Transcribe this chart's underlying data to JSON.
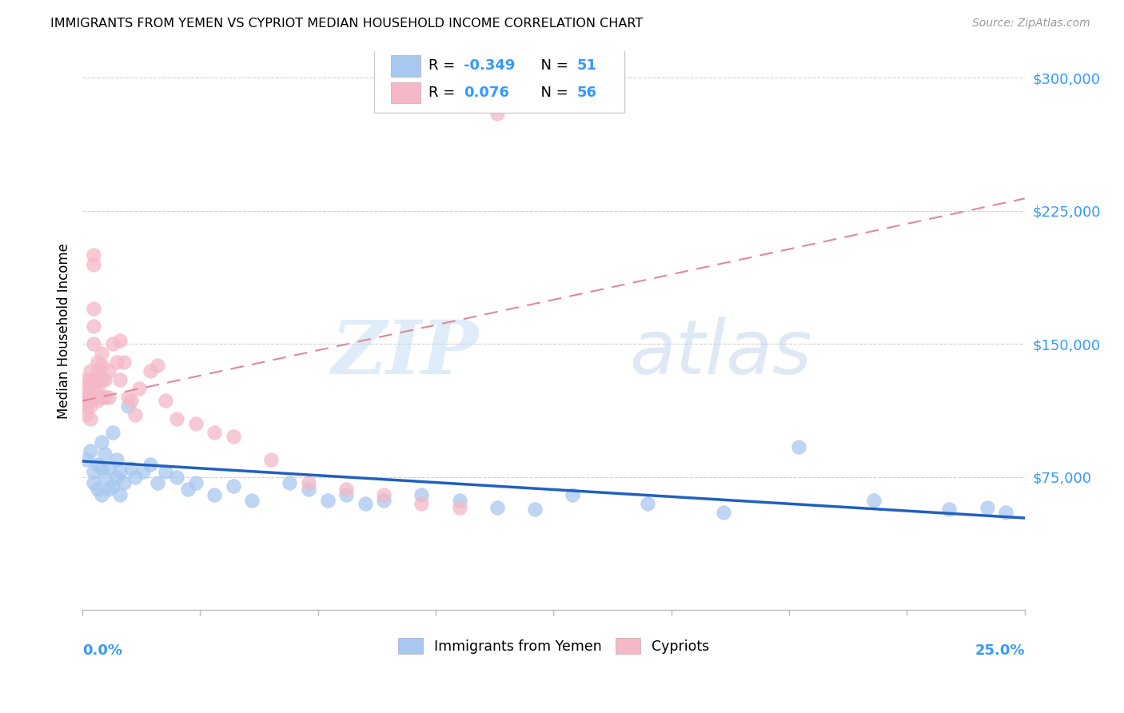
{
  "title": "IMMIGRANTS FROM YEMEN VS CYPRIOT MEDIAN HOUSEHOLD INCOME CORRELATION CHART",
  "source": "Source: ZipAtlas.com",
  "ylabel": "Median Household Income",
  "xmin": 0.0,
  "xmax": 0.25,
  "ymin": 0,
  "ymax": 315000,
  "yticks": [
    75000,
    150000,
    225000,
    300000
  ],
  "ytick_labels": [
    "$75,000",
    "$150,000",
    "$225,000",
    "$300,000"
  ],
  "blue_color": "#a8c8f0",
  "pink_color": "#f5b8c8",
  "trend_blue_color": "#2060c0",
  "trend_pink_color": "#e08898",
  "watermark_zip": "ZIP",
  "watermark_atlas": "atlas",
  "blue_scatter_x": [
    0.001,
    0.002,
    0.003,
    0.003,
    0.004,
    0.004,
    0.005,
    0.005,
    0.005,
    0.006,
    0.006,
    0.007,
    0.007,
    0.008,
    0.008,
    0.009,
    0.009,
    0.01,
    0.01,
    0.011,
    0.012,
    0.013,
    0.014,
    0.016,
    0.018,
    0.02,
    0.022,
    0.025,
    0.028,
    0.03,
    0.035,
    0.04,
    0.045,
    0.055,
    0.06,
    0.065,
    0.07,
    0.075,
    0.08,
    0.09,
    0.1,
    0.11,
    0.12,
    0.13,
    0.15,
    0.17,
    0.19,
    0.21,
    0.23,
    0.24,
    0.245
  ],
  "blue_scatter_y": [
    85000,
    90000,
    78000,
    72000,
    82000,
    68000,
    95000,
    80000,
    65000,
    88000,
    75000,
    80000,
    68000,
    100000,
    70000,
    85000,
    75000,
    78000,
    65000,
    72000,
    115000,
    80000,
    75000,
    78000,
    82000,
    72000,
    78000,
    75000,
    68000,
    72000,
    65000,
    70000,
    62000,
    72000,
    68000,
    62000,
    65000,
    60000,
    62000,
    65000,
    62000,
    58000,
    57000,
    65000,
    60000,
    55000,
    92000,
    62000,
    57000,
    58000,
    55000
  ],
  "pink_scatter_x": [
    0.001,
    0.001,
    0.001,
    0.001,
    0.001,
    0.001,
    0.002,
    0.002,
    0.002,
    0.002,
    0.002,
    0.002,
    0.002,
    0.003,
    0.003,
    0.003,
    0.003,
    0.003,
    0.003,
    0.003,
    0.004,
    0.004,
    0.004,
    0.004,
    0.004,
    0.005,
    0.005,
    0.005,
    0.005,
    0.006,
    0.006,
    0.007,
    0.007,
    0.008,
    0.009,
    0.01,
    0.01,
    0.011,
    0.012,
    0.013,
    0.014,
    0.015,
    0.018,
    0.02,
    0.022,
    0.025,
    0.03,
    0.035,
    0.04,
    0.05,
    0.06,
    0.07,
    0.08,
    0.09,
    0.1,
    0.11
  ],
  "pink_scatter_y": [
    130000,
    125000,
    122000,
    118000,
    115000,
    110000,
    135000,
    130000,
    128000,
    122000,
    118000,
    115000,
    108000,
    200000,
    195000,
    170000,
    160000,
    150000,
    130000,
    125000,
    140000,
    135000,
    130000,
    125000,
    118000,
    145000,
    138000,
    130000,
    120000,
    130000,
    120000,
    135000,
    120000,
    150000,
    140000,
    152000,
    130000,
    140000,
    120000,
    118000,
    110000,
    125000,
    135000,
    138000,
    118000,
    108000,
    105000,
    100000,
    98000,
    85000,
    72000,
    68000,
    65000,
    60000,
    58000,
    280000
  ],
  "blue_trend_x0": 0.0,
  "blue_trend_x1": 0.25,
  "blue_trend_y0": 84000,
  "blue_trend_y1": 52000,
  "pink_trend_x0": 0.0,
  "pink_trend_x1": 0.25,
  "pink_trend_y0": 118000,
  "pink_trend_y1": 232000
}
